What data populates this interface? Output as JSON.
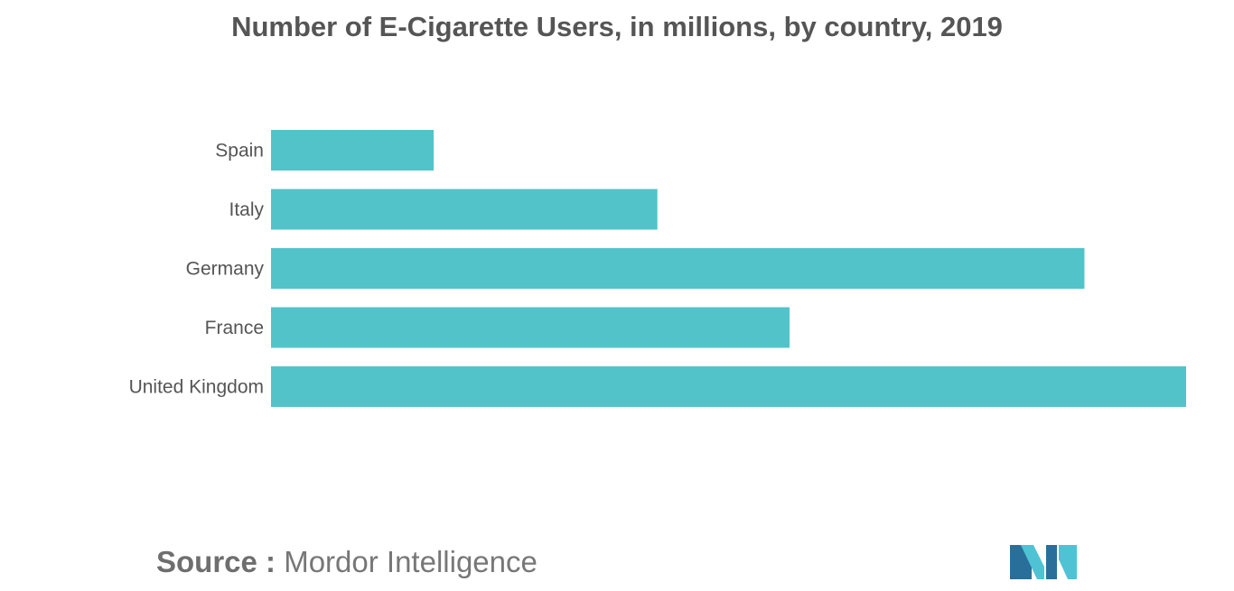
{
  "title": "Number of E-Cigarette Users, in millions, by country, 2019",
  "source": {
    "prefix": "Source :",
    "name": "Mordor Intelligence"
  },
  "colors": {
    "bar": "#52c3c9",
    "text": "#555555",
    "logo_dark": "#2a6f9a",
    "logo_light": "#4fc3d4"
  },
  "chart_data": {
    "type": "bar",
    "orientation": "horizontal",
    "title": "Number of E-Cigarette Users, in millions, by country, 2019",
    "categories": [
      "Spain",
      "Italy",
      "Germany",
      "France",
      "United Kingdom"
    ],
    "values": [
      0.8,
      1.9,
      4.0,
      2.55,
      4.5
    ],
    "xlabel": "",
    "ylabel": "",
    "xlim": [
      0,
      4.5
    ],
    "grid": false,
    "axis_values_shown": false
  }
}
